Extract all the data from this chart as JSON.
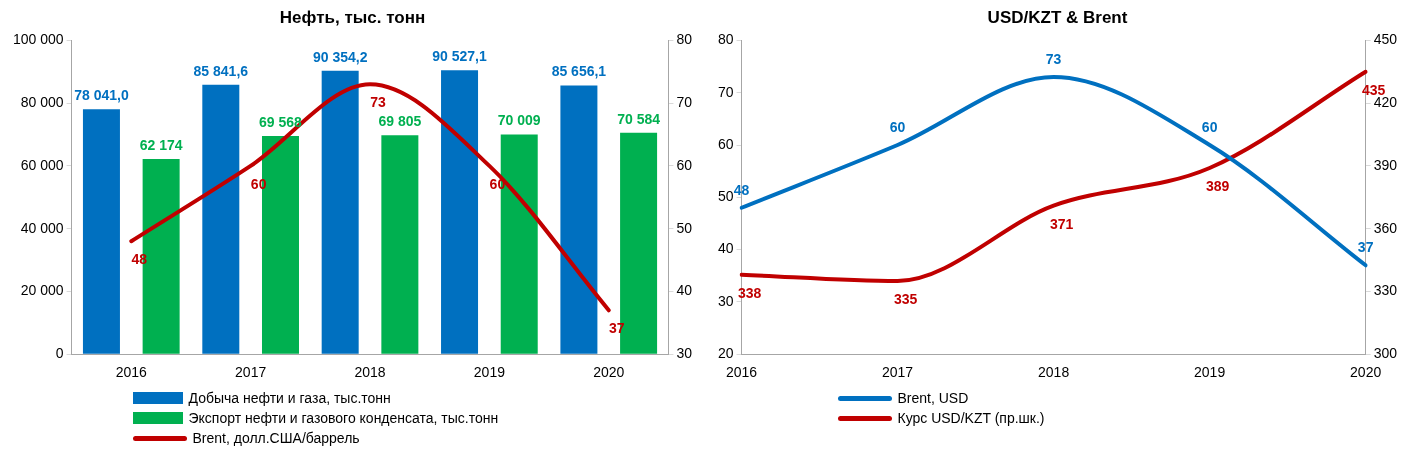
{
  "chart_data": [
    {
      "type": "bar",
      "title": "Нефть, тыс. тонн",
      "categories": [
        "2016",
        "2017",
        "2018",
        "2019",
        "2020"
      ],
      "series": [
        {
          "name": "Добыча нефти и газа, тыс.тонн",
          "type": "bar",
          "color": "#0070c0",
          "values": [
            78041.0,
            85841.6,
            90354.2,
            90527.1,
            85656.1
          ],
          "value_labels": [
            "78 041,0",
            "85 841,6",
            "90 354,2",
            "90 527,1",
            "85 656,1"
          ]
        },
        {
          "name": "Экспорт нефти и газового конденсата, тыс.тонн",
          "type": "bar",
          "color": "#00b050",
          "values": [
            62174,
            69568,
            69805,
            70009,
            70584
          ],
          "value_labels": [
            "62 174",
            "69 568",
            "69 805",
            "70 009",
            "70 584"
          ]
        },
        {
          "name": "Brent, долл.США/баррель",
          "type": "line",
          "axis": "y2",
          "color": "#c00000",
          "values": [
            48,
            60,
            73,
            60,
            37
          ],
          "value_labels": [
            "48",
            "60",
            "73",
            "60",
            "37"
          ]
        }
      ],
      "ylim": [
        0,
        100000
      ],
      "yticks": [
        {
          "value": 0,
          "label": "0"
        },
        {
          "value": 20000,
          "label": "20 000"
        },
        {
          "value": 40000,
          "label": "40 000"
        },
        {
          "value": 60000,
          "label": "60 000"
        },
        {
          "value": 80000,
          "label": "80 000"
        },
        {
          "value": 100000,
          "label": "100 000"
        }
      ],
      "y2lim": [
        30,
        80
      ],
      "y2ticks": [
        30,
        40,
        50,
        60,
        70,
        80
      ],
      "grid": false,
      "legend": "bottom",
      "marker": "none"
    },
    {
      "type": "line",
      "title": "USD/KZT & Brent",
      "categories": [
        "2016",
        "2017",
        "2018",
        "2019",
        "2020"
      ],
      "series": [
        {
          "name": "Brent, USD",
          "color": "#0070c0",
          "values": [
            48,
            60,
            73,
            60,
            37
          ],
          "value_labels": [
            "48",
            "60",
            "73",
            "60",
            "37"
          ]
        },
        {
          "name": "Курс USD/KZT (пр.шк.)",
          "axis": "y2",
          "color": "#c00000",
          "values": [
            338,
            335,
            371,
            389,
            435
          ],
          "value_labels": [
            "338",
            "335",
            "371",
            "389",
            "435"
          ]
        }
      ],
      "ylim": [
        20,
        80
      ],
      "yticks": [
        20,
        30,
        40,
        50,
        60,
        70,
        80
      ],
      "y2lim": [
        300,
        450
      ],
      "y2ticks": [
        300,
        330,
        360,
        390,
        420,
        450
      ],
      "grid": false,
      "legend": "bottom",
      "marker": "none"
    }
  ]
}
